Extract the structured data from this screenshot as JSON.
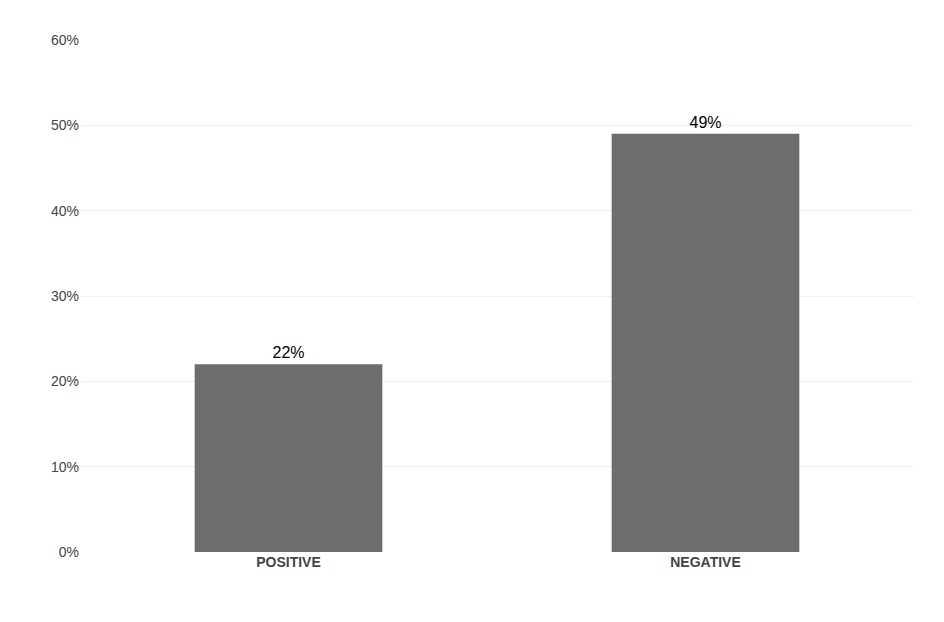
{
  "chart_data": {
    "type": "bar",
    "categories": [
      "POSITIVE",
      "NEGATIVE"
    ],
    "values": [
      22,
      49
    ],
    "value_labels": [
      "22%",
      "49%"
    ],
    "data_labels": true,
    "color": "#6d6d6d",
    "ylim": [
      0,
      60
    ],
    "yticks": [
      {
        "value": 0,
        "label": "0%"
      },
      {
        "value": 10,
        "label": "10%"
      },
      {
        "value": 20,
        "label": "20%"
      },
      {
        "value": 30,
        "label": "30%"
      },
      {
        "value": 40,
        "label": "40%"
      },
      {
        "value": 50,
        "label": "50%"
      },
      {
        "value": 60,
        "label": "60%"
      }
    ],
    "grid": true
  }
}
